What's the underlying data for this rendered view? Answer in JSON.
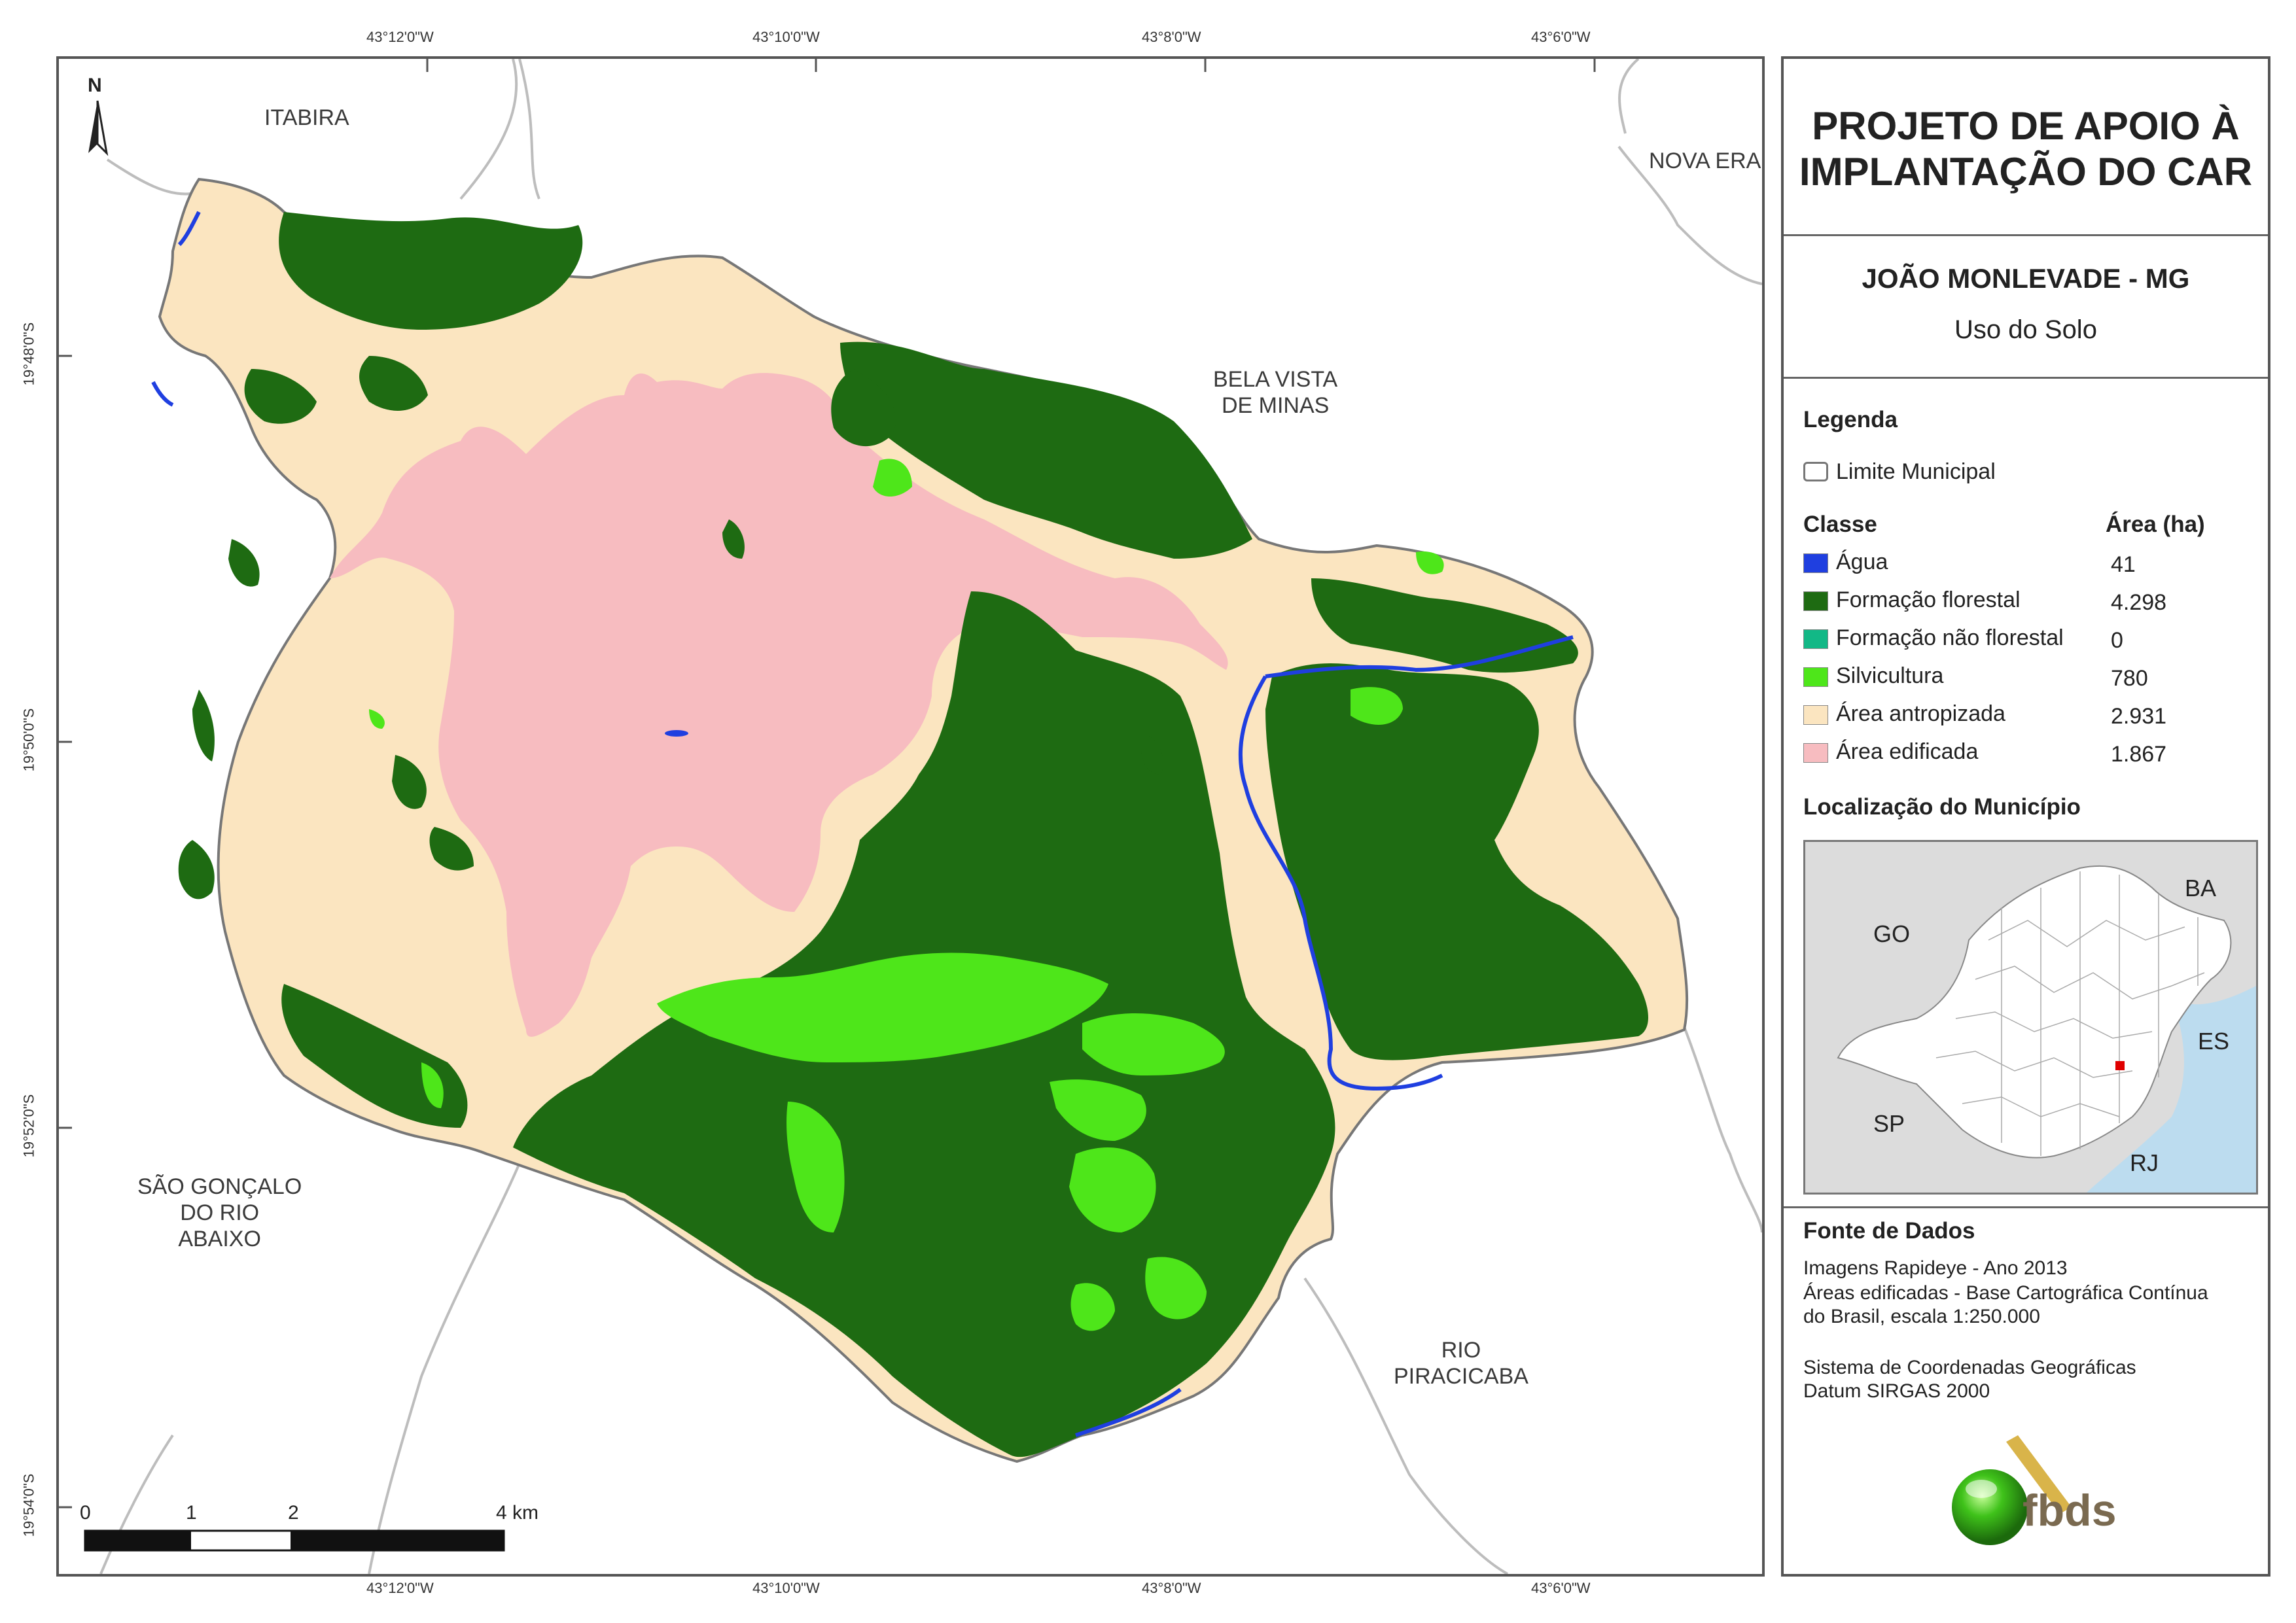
{
  "coordinates": {
    "longitudes": [
      "43°12'0\"W",
      "43°10'0\"W",
      "43°8'0\"W",
      "43°6'0\"W"
    ],
    "latitudes": [
      "19°48'0\"S",
      "19°50'0\"S",
      "19°52'0\"S",
      "19°54'0\"S"
    ]
  },
  "map": {
    "north_label": "N",
    "neighbors": {
      "itabira": "ITABIRA",
      "nova_era": "NOVA ERA",
      "bela_vista": "BELA VISTA\nDE MINAS",
      "sao_goncalo": "SÃO GONÇALO\nDO RIO\nABAIXO",
      "rio_piracicaba": "RIO\nPIRACICABA"
    },
    "scale_labels": [
      "0",
      "1",
      "2",
      "4 km"
    ]
  },
  "legend_panel": {
    "title": "PROJETO DE APOIO À IMPLANTAÇÃO DO CAR",
    "city": "JOÃO MONLEVADE - MG",
    "theme": "Uso do Solo",
    "legend_heading": "Legenda",
    "boundary_label": "Limite Municipal",
    "class_heading": "Classe",
    "area_heading": "Área (ha)",
    "classes": [
      {
        "name": "Água",
        "area": "41",
        "color": "#1f3fe0"
      },
      {
        "name": "Formação florestal",
        "area": "4.298",
        "color": "#1e6b12"
      },
      {
        "name": "Formação não florestal",
        "area": "0",
        "color": "#12b886"
      },
      {
        "name": "Silvicultura",
        "area": "780",
        "color": "#4ee61a"
      },
      {
        "name": "Área antropizada",
        "area": "2.931",
        "color": "#fbe5c0"
      },
      {
        "name": "Área edificada",
        "area": "1.867",
        "color": "#f7bcc0"
      }
    ],
    "location_heading": "Localização do Município",
    "inset_states": [
      "GO",
      "BA",
      "ES",
      "SP",
      "RJ"
    ],
    "source_heading": "Fonte de Dados",
    "source_lines": [
      "Imagens Rapideye - Ano 2013",
      "Áreas edificadas - Base Cartográfica Contínua",
      "do Brasil, escala 1:250.000",
      "Sistema de Coordenadas Geográficas",
      "Datum SIRGAS 2000"
    ],
    "logo_text": "fbds"
  }
}
